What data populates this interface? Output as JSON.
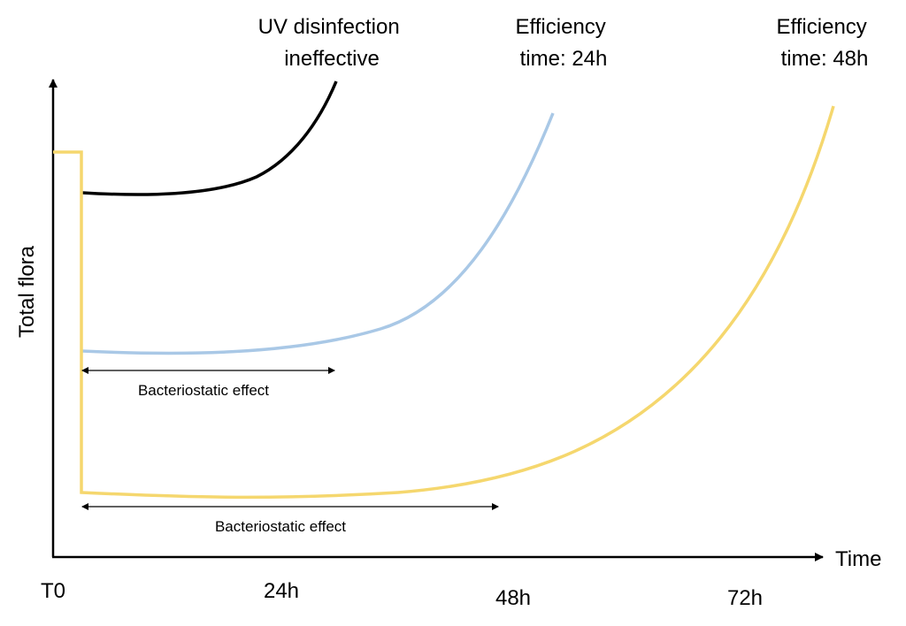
{
  "annotations": {
    "uv_ineffective": [
      "UV disinfection",
      "ineffective"
    ],
    "efficiency_24h": [
      "Efficiency",
      "time: 24h"
    ],
    "efficiency_48h": [
      "Efficiency",
      "time: 48h"
    ]
  },
  "axes": {
    "y_label": "Total flora",
    "x_label": "Time",
    "x_ticks": [
      "T0",
      "24h",
      "48h",
      "72h"
    ]
  },
  "bracket_labels": [
    "Bacteriostatic effect",
    "Bacteriostatic effect"
  ]
}
